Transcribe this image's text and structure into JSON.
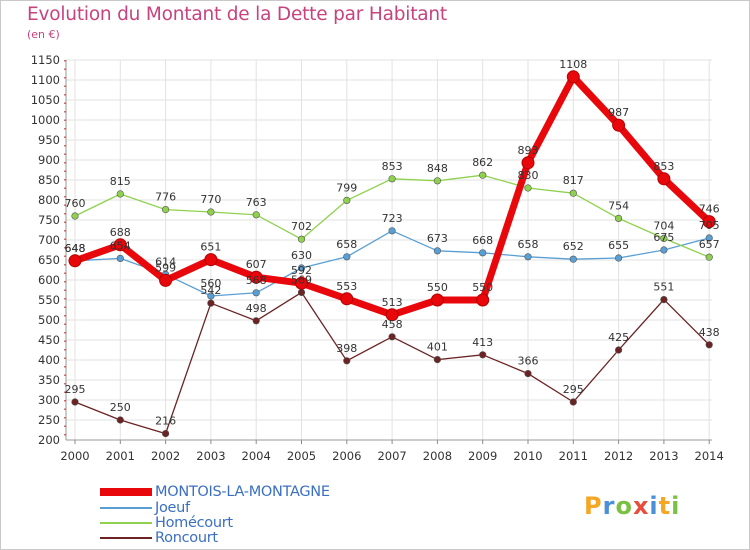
{
  "title": "Evolution du Montant de la Dette par Habitant",
  "subtitle": "(en €)",
  "logo": {
    "text": "Proxiti",
    "letters": [
      {
        "ch": "P",
        "color": "#f5a623"
      },
      {
        "ch": "r",
        "color": "#4a90d9"
      },
      {
        "ch": "o",
        "color": "#7bc043"
      },
      {
        "ch": "x",
        "color": "#e94e3c"
      },
      {
        "ch": "i",
        "color": "#4a90d9"
      },
      {
        "ch": "t",
        "color": "#f5a623"
      },
      {
        "ch": "i",
        "color": "#7bc043"
      }
    ]
  },
  "chart_data": {
    "type": "line",
    "x": [
      "2000",
      "2001",
      "2002",
      "2003",
      "2004",
      "2005",
      "2006",
      "2007",
      "2008",
      "2009",
      "2010",
      "2011",
      "2012",
      "2013",
      "2014"
    ],
    "ylim": [
      200,
      1150
    ],
    "yticks": [
      200,
      250,
      300,
      350,
      400,
      450,
      500,
      550,
      600,
      650,
      700,
      750,
      800,
      850,
      900,
      950,
      1000,
      1050,
      1100,
      1150
    ],
    "grid": true,
    "legend_position": "bottom-left",
    "series": [
      {
        "name": "MONTOIS-LA-MONTAGNE",
        "color": "#e8070b",
        "width": 7,
        "values": [
          648,
          688,
          599,
          651,
          607,
          592,
          553,
          513,
          550,
          550,
          893,
          1108,
          987,
          853,
          746
        ]
      },
      {
        "name": "Joeuf",
        "color": "#5a9fd4",
        "width": 1.3,
        "values": [
          648,
          654,
          614,
          560,
          568,
          630,
          658,
          723,
          673,
          668,
          658,
          652,
          655,
          675,
          705
        ]
      },
      {
        "name": "Homécourt",
        "color": "#8fd14f",
        "width": 1.3,
        "values": [
          760,
          815,
          776,
          770,
          763,
          702,
          799,
          853,
          848,
          862,
          830,
          817,
          754,
          704,
          657
        ]
      },
      {
        "name": "Roncourt",
        "color": "#6b2324",
        "width": 1.3,
        "values": [
          295,
          250,
          216,
          542,
          498,
          569,
          398,
          458,
          401,
          413,
          366,
          295,
          425,
          551,
          438
        ]
      }
    ],
    "data_labels": [
      [
        "648",
        "688",
        "599",
        "651",
        "607",
        "592",
        "553",
        "513",
        "550",
        "550",
        "893",
        "1108",
        "987",
        "853",
        "746"
      ],
      [
        "648",
        "654",
        "614",
        "560",
        "568",
        "630",
        "658",
        "723",
        "673",
        "668",
        "658",
        "652",
        "655",
        "675",
        "705"
      ],
      [
        "760",
        "815",
        "776",
        "770",
        "763",
        "702",
        "799",
        "853",
        "848",
        "862",
        "830",
        "817",
        "754",
        "704",
        "657"
      ],
      [
        "295",
        "250",
        "216",
        "542",
        "498",
        "569",
        "398",
        "458",
        "401",
        "413",
        "366",
        "295",
        "425",
        "551",
        "438"
      ]
    ]
  }
}
